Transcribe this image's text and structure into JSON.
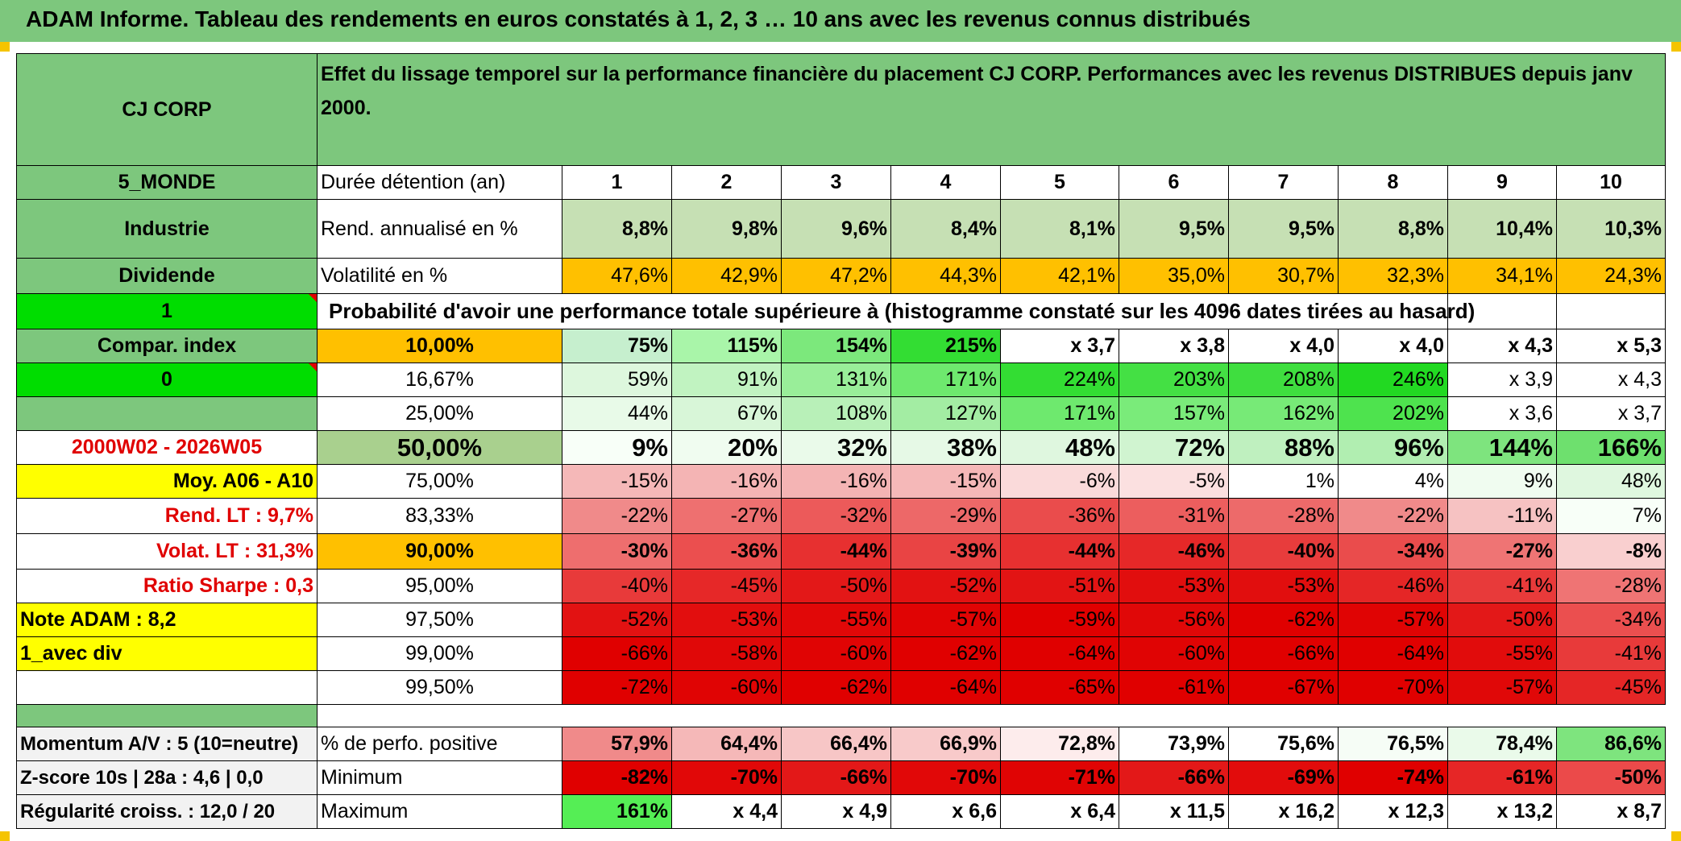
{
  "title": "ADAM Informe. Tableau des rendements en euros constatés à 1, 2, 3 … 10 ans avec les revenus connus distribués",
  "colors": {
    "accent_green": "#7DC77D",
    "bright_green": "#00DD00",
    "orange": "#FFC000",
    "yellow": "#FFFF00",
    "red_text": "#E00000"
  },
  "header": {
    "company": "CJ CORP",
    "description": "Effet du lissage temporel sur la performance financière du placement CJ CORP. Performances avec les revenus DISTRIBUES depuis janv 2000."
  },
  "side": {
    "region": "5_MONDE",
    "sector": "Industrie",
    "type": "Dividende",
    "flag1": "1",
    "compar": "Compar. index",
    "flag0": "0",
    "period": "2000W02 - 2026W05",
    "moy": "Moy. A06 - A10",
    "rend_lt": "Rend. LT :   9,7%",
    "volat_lt": "Volat. LT :   31,3%",
    "sharpe": "Ratio Sharpe :   0,3",
    "note": "Note ADAM : 8,2",
    "avec_div": "1_avec div",
    "momentum": "Momentum A/V : 5 (10=neutre)",
    "zscore": "Z-score 10s | 28a : 4,6 | 0,0",
    "regularite": "Régularité croiss. : 12,0 / 20"
  },
  "labels": {
    "duree": "Durée détention (an)",
    "rend": "Rend. annualisé en %",
    "volat": "Volatilité en %",
    "proba": "Probabilité d'avoir une performance totale supérieure à (histogramme constaté sur les 4096 dates tirées au hasard)",
    "pos": "% de perfo. positive",
    "min": "Minimum",
    "max": "Maximum"
  },
  "years": [
    "1",
    "2",
    "3",
    "4",
    "5",
    "6",
    "7",
    "8",
    "9",
    "10"
  ],
  "rend_annualise": [
    "8,8%",
    "9,8%",
    "9,6%",
    "8,4%",
    "8,1%",
    "9,5%",
    "9,5%",
    "8,8%",
    "10,4%",
    "10,3%"
  ],
  "volatilite": [
    "47,6%",
    "42,9%",
    "47,2%",
    "44,3%",
    "42,1%",
    "35,0%",
    "30,7%",
    "32,3%",
    "34,1%",
    "24,3%"
  ],
  "prob_rows": [
    {
      "label": "10,00%",
      "values": [
        "75%",
        "115%",
        "154%",
        "215%",
        "x 3,7",
        "x 3,8",
        "x 4,0",
        "x 4,0",
        "x 4,3",
        "x 5,3"
      ]
    },
    {
      "label": "16,67%",
      "values": [
        "59%",
        "91%",
        "131%",
        "171%",
        "224%",
        "203%",
        "208%",
        "246%",
        "x 3,9",
        "x 4,3"
      ]
    },
    {
      "label": "25,00%",
      "values": [
        "44%",
        "67%",
        "108%",
        "127%",
        "171%",
        "157%",
        "162%",
        "202%",
        "x 3,6",
        "x 3,7"
      ]
    },
    {
      "label": "50,00%",
      "values": [
        "9%",
        "20%",
        "32%",
        "38%",
        "48%",
        "72%",
        "88%",
        "96%",
        "144%",
        "166%"
      ]
    },
    {
      "label": "75,00%",
      "values": [
        "-15%",
        "-16%",
        "-16%",
        "-15%",
        "-6%",
        "-5%",
        "1%",
        "4%",
        "9%",
        "48%"
      ]
    },
    {
      "label": "83,33%",
      "values": [
        "-22%",
        "-27%",
        "-32%",
        "-29%",
        "-36%",
        "-31%",
        "-28%",
        "-22%",
        "-11%",
        "7%"
      ]
    },
    {
      "label": "90,00%",
      "values": [
        "-30%",
        "-36%",
        "-44%",
        "-39%",
        "-44%",
        "-46%",
        "-40%",
        "-34%",
        "-27%",
        "-8%"
      ]
    },
    {
      "label": "95,00%",
      "values": [
        "-40%",
        "-45%",
        "-50%",
        "-52%",
        "-51%",
        "-53%",
        "-53%",
        "-46%",
        "-41%",
        "-28%"
      ]
    },
    {
      "label": "97,50%",
      "values": [
        "-52%",
        "-53%",
        "-55%",
        "-57%",
        "-59%",
        "-56%",
        "-62%",
        "-57%",
        "-50%",
        "-34%"
      ]
    },
    {
      "label": "99,00%",
      "values": [
        "-66%",
        "-58%",
        "-60%",
        "-62%",
        "-64%",
        "-60%",
        "-66%",
        "-64%",
        "-55%",
        "-41%"
      ]
    },
    {
      "label": "99,50%",
      "values": [
        "-72%",
        "-60%",
        "-62%",
        "-64%",
        "-65%",
        "-61%",
        "-67%",
        "-70%",
        "-57%",
        "-45%"
      ]
    }
  ],
  "perf_positive": [
    "57,9%",
    "64,4%",
    "66,4%",
    "66,9%",
    "72,8%",
    "73,9%",
    "75,6%",
    "76,5%",
    "78,4%",
    "86,6%"
  ],
  "minimum": [
    "-82%",
    "-70%",
    "-66%",
    "-70%",
    "-71%",
    "-66%",
    "-69%",
    "-74%",
    "-61%",
    "-50%"
  ],
  "maximum": [
    "161%",
    "x 4,4",
    "x 4,9",
    "x 6,6",
    "x 6,4",
    "x 11,5",
    "x 16,2",
    "x 12,3",
    "x 13,2",
    "x 8,7"
  ]
}
